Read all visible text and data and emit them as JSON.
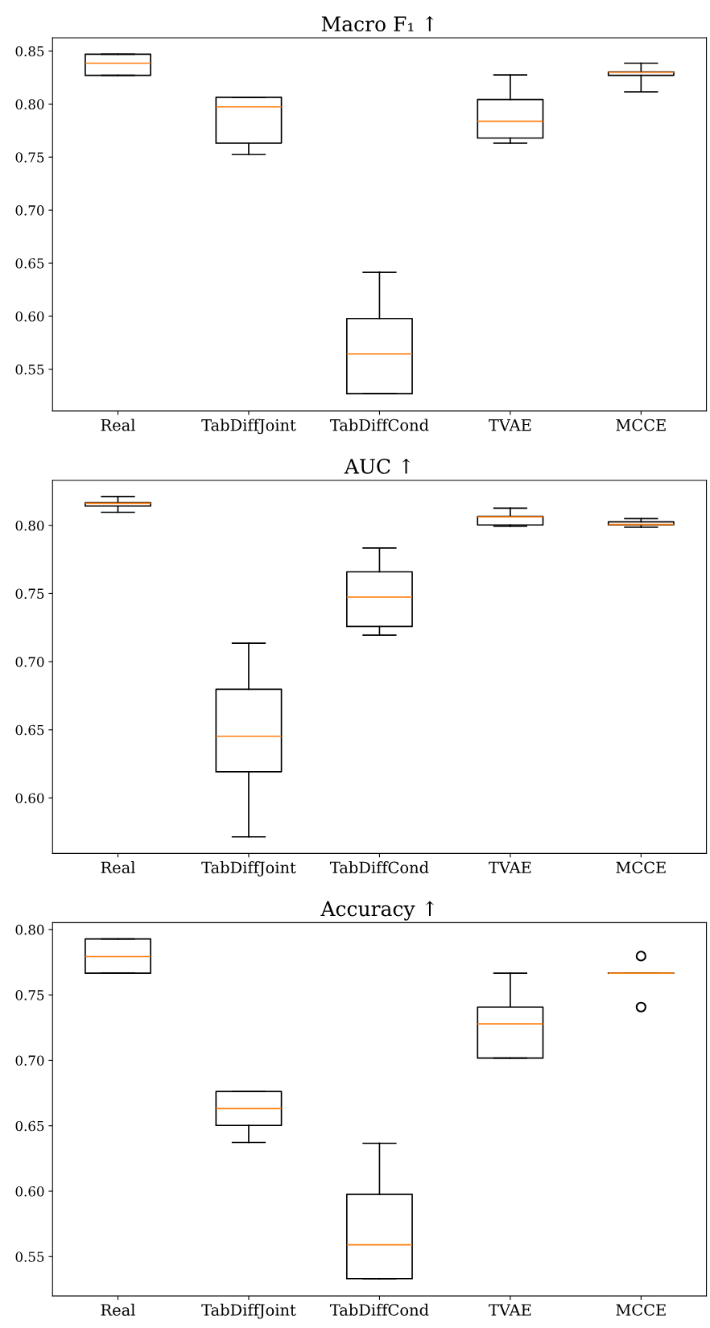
{
  "chart_data": [
    {
      "type": "box",
      "title": "Macro F₁ ↑",
      "categories": [
        "Real",
        "TabDiffJoint",
        "TabDiffCond",
        "TVAE",
        "MCCE"
      ],
      "ylim": [
        0.5107,
        0.8624
      ],
      "yticks": [
        {
          "value": 0.55,
          "label": "0.55"
        },
        {
          "value": 0.6,
          "label": "0.60"
        },
        {
          "value": 0.65,
          "label": "0.65"
        },
        {
          "value": 0.7,
          "label": "0.70"
        },
        {
          "value": 0.75,
          "label": "0.75"
        },
        {
          "value": 0.8,
          "label": "0.80"
        },
        {
          "value": 0.85,
          "label": "0.85"
        }
      ],
      "grid": false,
      "legend": false,
      "boxes": [
        {
          "low": 0.827,
          "q1": 0.827,
          "median": 0.8385,
          "q3": 0.847,
          "high": 0.847
        },
        {
          "low": 0.7526,
          "q1": 0.7632,
          "median": 0.7974,
          "q3": 0.8064,
          "high": 0.8064
        },
        {
          "low": 0.527,
          "q1": 0.527,
          "median": 0.5645,
          "q3": 0.5979,
          "high": 0.6415
        },
        {
          "low": 0.7632,
          "q1": 0.768,
          "median": 0.7838,
          "q3": 0.8043,
          "high": 0.8274
        },
        {
          "low": 0.8115,
          "q1": 0.827,
          "median": 0.83,
          "q3": 0.8303,
          "high": 0.8385
        }
      ]
    },
    {
      "type": "box",
      "title": "AUC ↑",
      "categories": [
        "Real",
        "TabDiffJoint",
        "TabDiffCond",
        "TVAE",
        "MCCE"
      ],
      "ylim": [
        0.5593,
        0.8331
      ],
      "yticks": [
        {
          "value": 0.6,
          "label": "0.60"
        },
        {
          "value": 0.65,
          "label": "0.65"
        },
        {
          "value": 0.7,
          "label": "0.70"
        },
        {
          "value": 0.75,
          "label": "0.75"
        },
        {
          "value": 0.8,
          "label": "0.80"
        }
      ],
      "grid": false,
      "legend": false,
      "boxes": [
        {
          "low": 0.8096,
          "q1": 0.8142,
          "median": 0.8162,
          "q3": 0.8166,
          "high": 0.8212
        },
        {
          "low": 0.5715,
          "q1": 0.6192,
          "median": 0.6453,
          "q3": 0.6798,
          "high": 0.7136
        },
        {
          "low": 0.7195,
          "q1": 0.7258,
          "median": 0.7474,
          "q3": 0.7659,
          "high": 0.7834
        },
        {
          "low": 0.7993,
          "q1": 0.8003,
          "median": 0.8063,
          "q3": 0.8066,
          "high": 0.8126
        },
        {
          "low": 0.7987,
          "q1": 0.8003,
          "median": 0.8007,
          "q3": 0.8026,
          "high": 0.805
        }
      ]
    },
    {
      "type": "box",
      "title": "Accuracy ↑",
      "categories": [
        "Real",
        "TabDiffJoint",
        "TabDiffCond",
        "TVAE",
        "MCCE"
      ],
      "ylim": [
        0.52,
        0.8052
      ],
      "yticks": [
        {
          "value": 0.55,
          "label": "0.55"
        },
        {
          "value": 0.6,
          "label": "0.60"
        },
        {
          "value": 0.65,
          "label": "0.65"
        },
        {
          "value": 0.7,
          "label": "0.70"
        },
        {
          "value": 0.75,
          "label": "0.75"
        },
        {
          "value": 0.8,
          "label": "0.80"
        }
      ],
      "grid": false,
      "legend": false,
      "boxes": [
        {
          "low": 0.7666,
          "q1": 0.7666,
          "median": 0.7793,
          "q3": 0.7928,
          "high": 0.7928
        },
        {
          "low": 0.6372,
          "q1": 0.6503,
          "median": 0.6631,
          "q3": 0.6762,
          "high": 0.6762
        },
        {
          "low": 0.5331,
          "q1": 0.5331,
          "median": 0.559,
          "q3": 0.5976,
          "high": 0.6366
        },
        {
          "low": 0.7017,
          "q1": 0.7017,
          "median": 0.7279,
          "q3": 0.7407,
          "high": 0.7666
        },
        {
          "low": 0.7666,
          "q1": 0.7666,
          "median": 0.7666,
          "q3": 0.7666,
          "high": 0.7666,
          "outliers": [
            0.7797,
            0.7407
          ]
        }
      ]
    }
  ]
}
